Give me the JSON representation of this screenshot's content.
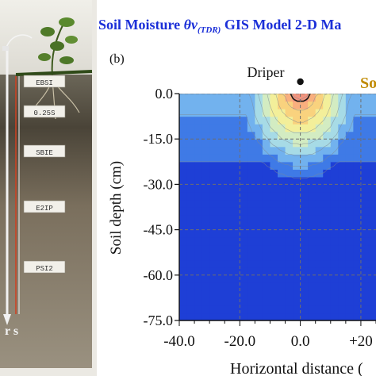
{
  "title": {
    "prefix": "Soil Moisture ",
    "theta": "θv",
    "subscript": "(TDR)",
    "suffix": " GIS Model 2-D Ma"
  },
  "panel_label": "(b)",
  "driper_label": "Driper",
  "partial_right_label": "So",
  "photo_panel": {
    "probe_labels": [
      "EBSI",
      "0.25S",
      "SBIE",
      "E2IP",
      "PSI2"
    ],
    "bottom_text": "r s"
  },
  "colors": {
    "title": "#1b2fd8",
    "partial_label": "#c08a00",
    "contour_line": "#1a1a1a",
    "grid": "#6f6f6f",
    "probe_line": "#d04020",
    "frame": "#e8e6e0"
  },
  "chart_data": {
    "type": "heatmap",
    "title": "",
    "xlabel": "Horizontal distance (",
    "ylabel": "Soil depth (cm)",
    "x_ticks": [
      "-40.0",
      "-20.0",
      "0.0",
      "+20"
    ],
    "y_ticks": [
      "0.0",
      "-15.0",
      "-30.0",
      "-45.0",
      "-60.0",
      "-75.0"
    ],
    "xlim": [
      -40,
      25
    ],
    "ylim": [
      -75,
      0
    ],
    "grid": true,
    "source_x": 0,
    "source_y": 0,
    "colormap": [
      "#1e3fd6",
      "#3f7ae6",
      "#72b2ee",
      "#a7dbe6",
      "#d3ecc2",
      "#f3ef9a",
      "#f9d27e",
      "#f9af7e",
      "#f2947e"
    ],
    "highlight_contour_level": 0.86
  }
}
